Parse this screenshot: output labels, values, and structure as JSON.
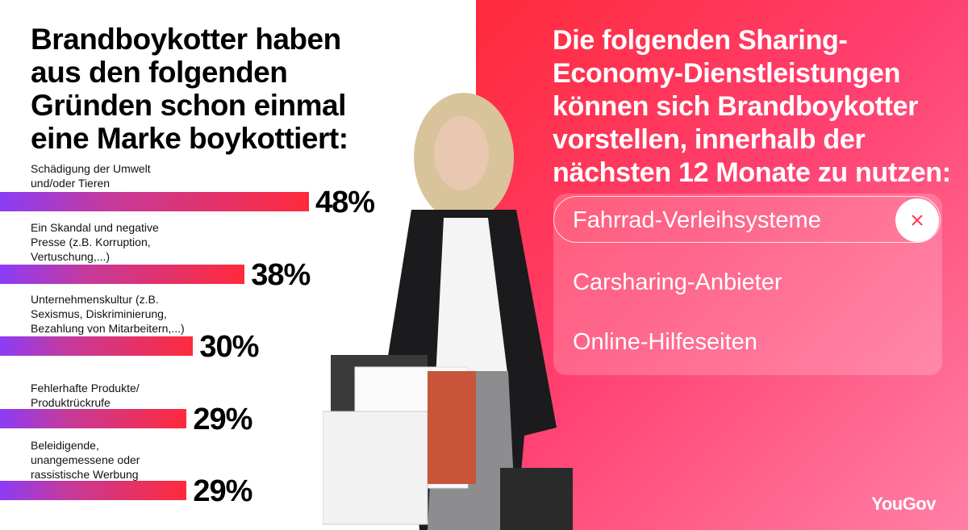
{
  "chart_data": {
    "type": "bar",
    "title": "Brandboykotter haben\naus den folgenden\nGründen schon einmal\neine Marke boykottiert:",
    "categories": [
      "Schädigung der Umwelt\nund/oder Tieren",
      "Ein Skandal und negative\nPresse (z.B. Korruption,\nVertuschung,...)",
      "Unternehmenskultur (z.B.\nSexismus, Diskriminierung,\nBezahlung von Mitarbeitern,...)",
      "Fehlerhafte Produkte/\nProduktrückrufe",
      "Beleidigende,\nunangemessene oder\nrassistische Werbung"
    ],
    "values": [
      48,
      38,
      30,
      29,
      29
    ],
    "value_labels": [
      "48%",
      "38%",
      "30%",
      "29%",
      "29%"
    ]
  },
  "panel": {
    "title": "Die folgenden Sharing-\nEconomy-Dienstleistungen\nkönnen sich Brandboykotter\nvorstellen, innerhalb der\nnächsten 12 Monate zu nutzen:",
    "items": [
      "Fahrrad-Verleihsysteme",
      "Carsharing-Anbieter",
      "Online-Hilfeseiten"
    ]
  },
  "brand": "YouGov"
}
